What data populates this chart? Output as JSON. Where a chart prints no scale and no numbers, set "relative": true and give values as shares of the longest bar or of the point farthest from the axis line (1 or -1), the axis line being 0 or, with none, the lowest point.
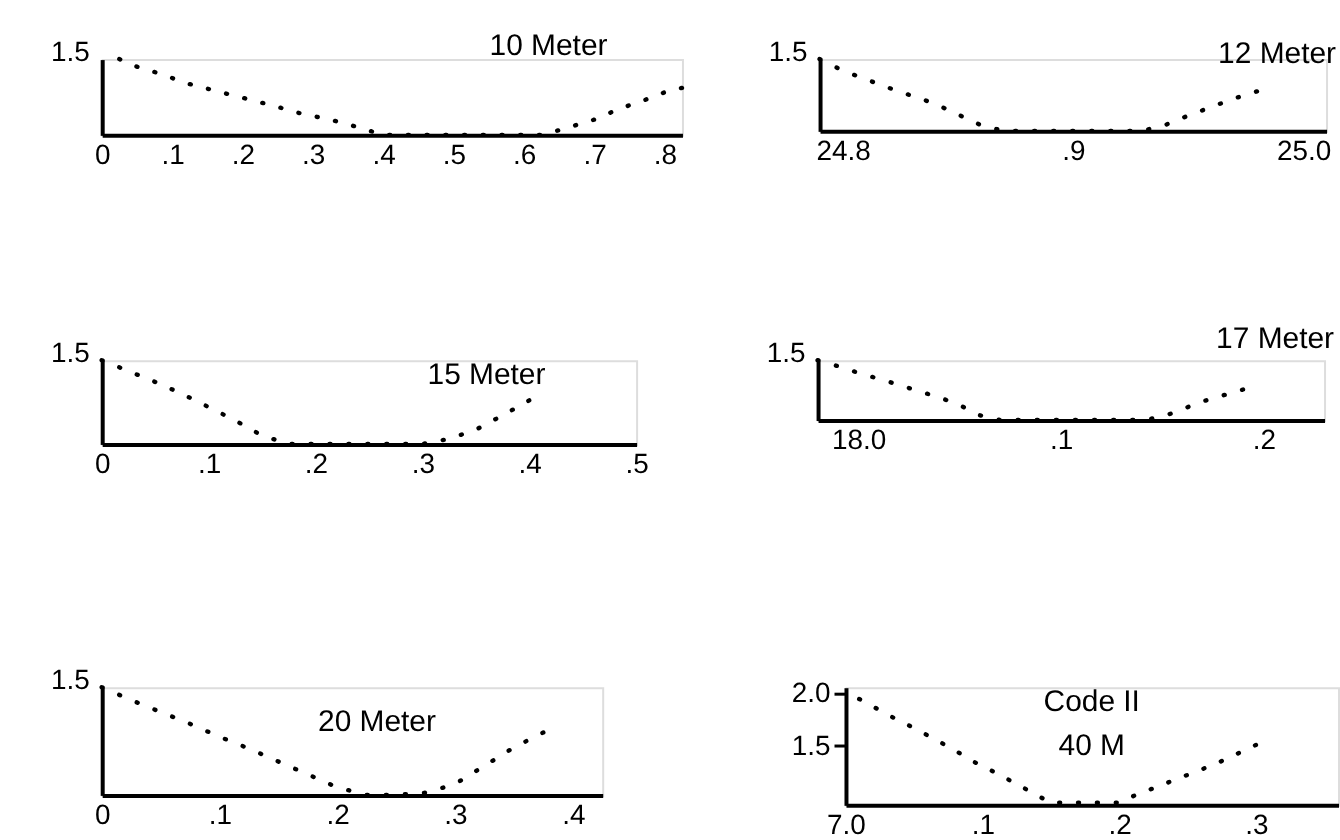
{
  "chart_data": [
    {
      "type": "line",
      "title": "10 Meter",
      "relative": true,
      "categories": [
        "0",
        null,
        null,
        null,
        ".1",
        null,
        null,
        null,
        ".2",
        null,
        null,
        null,
        ".3",
        null,
        null,
        null,
        ".4",
        null,
        null,
        null,
        ".5",
        null,
        null,
        null,
        ".6",
        null,
        null,
        null,
        ".7",
        null,
        null,
        null,
        ".8",
        null
      ],
      "values": [
        null,
        1,
        0.9,
        0.83,
        0.75,
        0.67,
        0.61,
        0.55,
        0.49,
        0.43,
        0.37,
        0.3,
        0.25,
        0.2,
        0.14,
        0.07,
        0,
        0,
        0,
        0,
        0,
        0,
        0,
        0,
        0,
        0,
        0.06,
        0.13,
        0.2,
        0.3,
        0.39,
        0.47,
        0.56,
        0.62
      ],
      "color": "#000000",
      "line_style": "dotted",
      "annotations": [
        "1.5"
      ]
    },
    {
      "type": "line",
      "title": "12 Meter",
      "relative": true,
      "categories": [
        null,
        "24.8",
        null,
        null,
        null,
        null,
        null,
        null,
        null,
        null,
        null,
        ".9",
        null,
        null,
        null,
        null,
        null,
        null,
        null,
        null,
        null,
        "25.0",
        null
      ],
      "values": [
        1,
        0.84,
        0.72,
        0.6,
        0.49,
        0.38,
        0.23,
        0.08,
        0,
        0,
        0,
        0,
        0,
        0,
        0,
        0.08,
        0.21,
        0.33,
        0.45,
        0.55,
        null,
        null,
        null
      ],
      "color": "#000000",
      "line_style": "dotted",
      "annotations": [
        "1.5"
      ]
    },
    {
      "type": "line",
      "title": "15 Meter",
      "relative": true,
      "categories": [
        "0",
        null,
        null,
        null,
        ".1",
        null,
        null,
        null,
        ".2",
        null,
        null,
        null,
        ".3",
        null,
        null,
        null,
        ".4",
        null,
        null,
        null,
        ".5"
      ],
      "values": [
        1,
        0.87,
        0.74,
        0.6,
        0.44,
        0.28,
        0.1,
        0,
        0,
        0,
        0,
        0,
        0,
        0.06,
        0.17,
        0.34,
        0.52,
        null,
        null,
        null,
        null
      ],
      "color": "#000000",
      "line_style": "dotted",
      "annotations": [
        "1.5"
      ]
    },
    {
      "type": "line",
      "title": "17 Meter",
      "relative": true,
      "categories": [
        null,
        null,
        "18.0",
        null,
        null,
        null,
        null,
        null,
        null,
        null,
        null,
        null,
        ".1",
        null,
        null,
        null,
        null,
        null,
        null,
        null,
        null,
        null,
        ".2",
        null,
        null,
        null
      ],
      "values": [
        1,
        0.9,
        0.79,
        0.69,
        0.59,
        0.48,
        0.38,
        0.25,
        0.08,
        0,
        0,
        0,
        0,
        0,
        0,
        0,
        0,
        0.05,
        0.18,
        0.31,
        0.41,
        0.51,
        null,
        null,
        null,
        null
      ],
      "color": "#000000",
      "line_style": "dotted",
      "annotations": [
        "1.5"
      ]
    },
    {
      "type": "line",
      "title": "20 Meter",
      "relative": true,
      "categories": [
        "0",
        null,
        null,
        null,
        ".1",
        null,
        null,
        null,
        ".2",
        null,
        null,
        null,
        ".3",
        null,
        null,
        null,
        ".4",
        null
      ],
      "values": [
        1,
        0.88,
        0.77,
        0.66,
        0.54,
        0.43,
        0.31,
        0.19,
        0.07,
        0,
        0,
        0.02,
        0.1,
        0.27,
        0.44,
        0.58,
        null,
        null
      ],
      "color": "#000000",
      "line_style": "dotted",
      "annotations": [
        "1.5"
      ]
    },
    {
      "type": "line",
      "title": "Code II",
      "subtitle": "40 M",
      "categories": [
        "7.0",
        null,
        null,
        null,
        null,
        null,
        null,
        null,
        null,
        null,
        ".1",
        null,
        null,
        null,
        null,
        null,
        null,
        null,
        null,
        null,
        ".2",
        null,
        null,
        null,
        null,
        null,
        null,
        null,
        null,
        null,
        ".3",
        null,
        null,
        null,
        null,
        null,
        null
      ],
      "values": [
        null,
        1.94,
        1.87,
        1.8,
        1.73,
        1.67,
        1.6,
        1.53,
        1.46,
        1.38,
        1.31,
        1.25,
        1.18,
        1.11,
        1.04,
        0.97,
        0.97,
        0.97,
        0.97,
        0.97,
        0.97,
        1.03,
        1.08,
        1.13,
        1.18,
        1.23,
        1.28,
        1.33,
        1.39,
        1.45,
        1.51,
        null,
        null,
        null,
        null,
        null,
        null
      ],
      "color": "#000000",
      "line_style": "dotted",
      "ylim": [
        0.95,
        2.05
      ],
      "yticks": [
        1.5,
        {
          "value": 2.0,
          "label": "2.0"
        }
      ]
    }
  ]
}
